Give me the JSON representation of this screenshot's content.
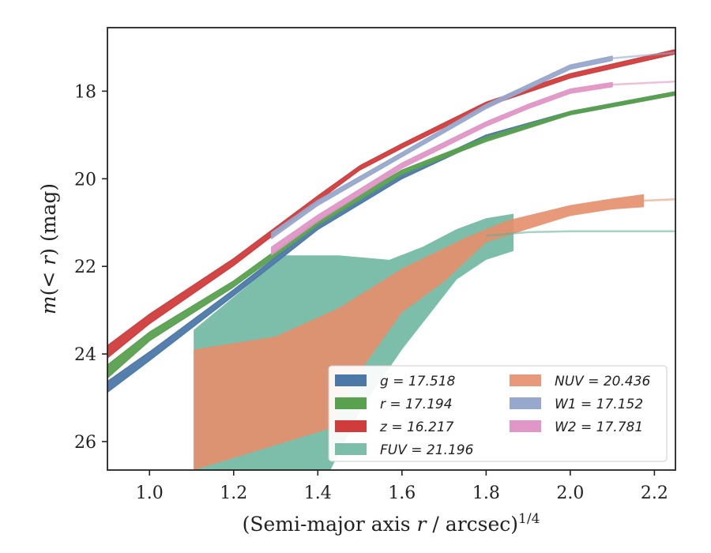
{
  "chart_data": {
    "type": "area",
    "title": "",
    "xlabel_main": "(Semi-major axis ",
    "xlabel_var": "r",
    "xlabel_rest": " / arcsec)",
    "xlabel_sup": "1/4",
    "ylabel_var1": "m",
    "ylabel_lt": "(< ",
    "ylabel_var2": "r",
    "ylabel_rest": ") (mag)",
    "xlim": [
      0.9,
      2.25
    ],
    "ylim": [
      26.65,
      16.55
    ],
    "y_inverted": true,
    "xticks": [
      1.0,
      1.2,
      1.4,
      1.6,
      1.8,
      2.0,
      2.2
    ],
    "xtick_labels": [
      "1.0",
      "1.2",
      "1.4",
      "1.6",
      "1.8",
      "2.0",
      "2.2"
    ],
    "yticks": [
      18,
      20,
      22,
      24,
      26
    ],
    "ytick_labels": [
      "18",
      "20",
      "22",
      "24",
      "26"
    ],
    "grid": false,
    "legend_position": "lower-right",
    "series": [
      {
        "name": "g",
        "label": "g = 17.518",
        "color": "#4c78a8",
        "points": [
          [
            0.9,
            24.75
          ],
          [
            1.0,
            24.05
          ],
          [
            1.2,
            22.6
          ],
          [
            1.4,
            21.1
          ],
          [
            1.6,
            19.95
          ],
          [
            1.8,
            19.05
          ],
          [
            2.0,
            18.5
          ],
          [
            2.25,
            18.05
          ]
        ],
        "width": [
          0.25,
          0.2,
          0.14,
          0.12,
          0.1,
          0.1,
          0.08,
          0.08
        ],
        "extrap": []
      },
      {
        "name": "r",
        "label": "r = 17.194",
        "color": "#59a14f",
        "points": [
          [
            0.9,
            24.4
          ],
          [
            1.0,
            23.6
          ],
          [
            1.2,
            22.4
          ],
          [
            1.4,
            21.0
          ],
          [
            1.6,
            19.85
          ],
          [
            1.8,
            19.1
          ],
          [
            2.0,
            18.5
          ],
          [
            2.25,
            18.05
          ]
        ],
        "width": [
          0.3,
          0.2,
          0.14,
          0.12,
          0.1,
          0.1,
          0.08,
          0.08
        ],
        "extrap": []
      },
      {
        "name": "z",
        "label": "z = 16.217",
        "color": "#d03c3c",
        "points": [
          [
            0.9,
            23.95
          ],
          [
            1.0,
            23.2
          ],
          [
            1.2,
            21.9
          ],
          [
            1.4,
            20.45
          ],
          [
            1.5,
            19.75
          ],
          [
            1.6,
            19.25
          ],
          [
            1.8,
            18.3
          ],
          [
            2.0,
            17.65
          ],
          [
            2.25,
            17.1
          ]
        ],
        "width": [
          0.28,
          0.22,
          0.16,
          0.12,
          0.1,
          0.1,
          0.1,
          0.1,
          0.1
        ],
        "extrap": []
      },
      {
        "name": "W1",
        "label": "W1 = 17.152",
        "color": "#97a8cc",
        "points": [
          [
            1.29,
            21.3
          ],
          [
            1.4,
            20.55
          ],
          [
            1.6,
            19.45
          ],
          [
            1.8,
            18.35
          ],
          [
            1.9,
            17.9
          ],
          [
            2.0,
            17.45
          ],
          [
            2.1,
            17.25
          ]
        ],
        "width": [
          0.14,
          0.12,
          0.1,
          0.1,
          0.1,
          0.1,
          0.1
        ],
        "extrap": [
          [
            2.1,
            17.25
          ],
          [
            2.25,
            17.12
          ]
        ]
      },
      {
        "name": "W2",
        "label": "W2 = 17.781",
        "color": "#e096c6",
        "points": [
          [
            1.29,
            21.65
          ],
          [
            1.4,
            20.9
          ],
          [
            1.6,
            19.7
          ],
          [
            1.8,
            18.75
          ],
          [
            1.9,
            18.35
          ],
          [
            2.0,
            18.0
          ],
          [
            2.1,
            17.85
          ]
        ],
        "width": [
          0.18,
          0.14,
          0.12,
          0.1,
          0.1,
          0.1,
          0.1
        ],
        "extrap": [
          [
            2.1,
            17.85
          ],
          [
            2.25,
            17.78
          ]
        ]
      }
    ],
    "bands": [
      {
        "name": "FUV",
        "label": "FUV = 21.196",
        "color": "#5dae95",
        "opacity": 0.8,
        "upper": [
          [
            1.105,
            23.45
          ],
          [
            1.32,
            21.75
          ],
          [
            1.45,
            21.75
          ],
          [
            1.57,
            21.85
          ],
          [
            1.65,
            21.55
          ],
          [
            1.73,
            21.15
          ],
          [
            1.8,
            20.9
          ],
          [
            1.865,
            20.8
          ]
        ],
        "lower": [
          [
            1.865,
            21.65
          ],
          [
            1.8,
            21.85
          ],
          [
            1.73,
            22.3
          ],
          [
            1.6,
            23.9
          ],
          [
            1.5,
            25.3
          ],
          [
            1.43,
            26.65
          ],
          [
            1.105,
            26.65
          ]
        ],
        "extrap": [
          [
            1.8,
            21.3
          ],
          [
            1.9,
            21.22
          ],
          [
            2.0,
            21.2
          ],
          [
            2.25,
            21.2
          ]
        ]
      },
      {
        "name": "NUV",
        "label": "NUV = 20.436",
        "color": "#e58e6a",
        "opacity": 0.9,
        "upper": [
          [
            1.105,
            23.9
          ],
          [
            1.3,
            23.6
          ],
          [
            1.45,
            22.95
          ],
          [
            1.6,
            22.05
          ],
          [
            1.75,
            21.35
          ],
          [
            1.85,
            20.95
          ],
          [
            2.0,
            20.6
          ],
          [
            2.1,
            20.45
          ],
          [
            2.175,
            20.35
          ]
        ],
        "lower": [
          [
            2.175,
            20.65
          ],
          [
            2.1,
            20.7
          ],
          [
            2.0,
            20.85
          ],
          [
            1.9,
            21.15
          ],
          [
            1.8,
            21.45
          ],
          [
            1.7,
            22.35
          ],
          [
            1.6,
            23.05
          ],
          [
            1.5,
            24.4
          ],
          [
            1.43,
            25.7
          ],
          [
            1.105,
            26.65
          ]
        ],
        "extrap": [
          [
            2.175,
            20.5
          ],
          [
            2.25,
            20.47
          ]
        ]
      }
    ],
    "legend_order_col1": [
      "g",
      "r",
      "z",
      "FUV"
    ],
    "legend_order_col2": [
      "NUV",
      "W1",
      "W2"
    ]
  }
}
